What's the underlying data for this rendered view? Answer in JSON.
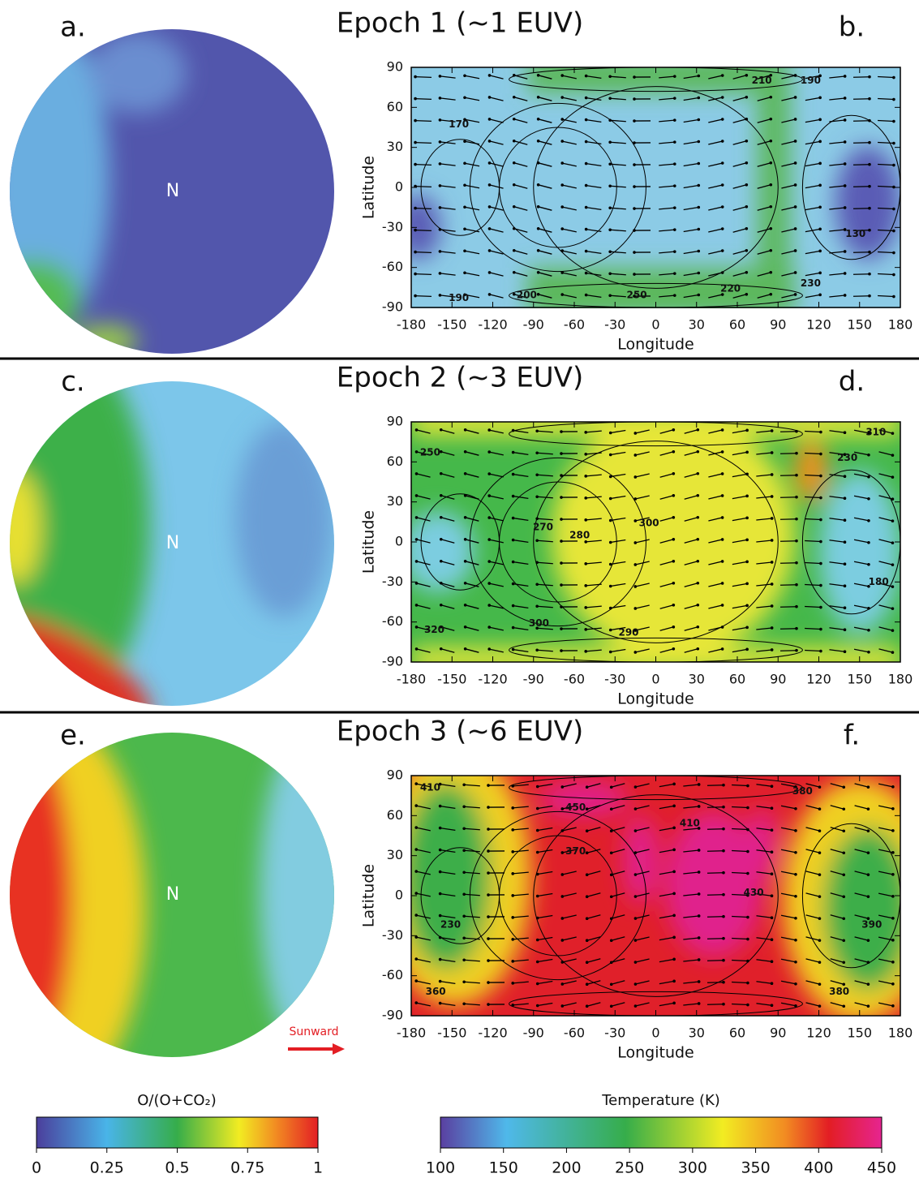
{
  "figure": {
    "rows": [
      {
        "title": "Epoch 1 (~1 EUV)",
        "disk_label": "a.",
        "map_label": "b.",
        "pole": "N",
        "contour_labels": [
          {
            "value": 170,
            "lon": -145,
            "lat": 47
          },
          {
            "value": 190,
            "lon": -145,
            "lat": -83
          },
          {
            "value": 200,
            "lon": -95,
            "lat": -81
          },
          {
            "value": 250,
            "lon": -14,
            "lat": -81
          },
          {
            "value": 220,
            "lon": 55,
            "lat": -76
          },
          {
            "value": 230,
            "lon": 114,
            "lat": -72
          },
          {
            "value": 130,
            "lon": 147,
            "lat": -35
          },
          {
            "value": 210,
            "lon": 78,
            "lat": 80
          },
          {
            "value": 190,
            "lon": 114,
            "lat": 80
          }
        ]
      },
      {
        "title": "Epoch 2 (~3 EUV)",
        "disk_label": "c.",
        "map_label": "d.",
        "pole": "N",
        "contour_labels": [
          {
            "value": 250,
            "lon": -166,
            "lat": 67
          },
          {
            "value": 320,
            "lon": -163,
            "lat": -66
          },
          {
            "value": 300,
            "lon": -86,
            "lat": -61
          },
          {
            "value": 270,
            "lon": -83,
            "lat": 11
          },
          {
            "value": 280,
            "lon": -56,
            "lat": 5
          },
          {
            "value": 300,
            "lon": -5,
            "lat": 14
          },
          {
            "value": 290,
            "lon": -20,
            "lat": -68
          },
          {
            "value": 310,
            "lon": 162,
            "lat": 82
          },
          {
            "value": 180,
            "lon": 164,
            "lat": -30
          },
          {
            "value": 230,
            "lon": 141,
            "lat": 63
          }
        ]
      },
      {
        "title": "Epoch 3 (~6 EUV)",
        "disk_label": "e.",
        "map_label": "f.",
        "pole": "N",
        "contour_labels": [
          {
            "value": 410,
            "lon": -166,
            "lat": 81
          },
          {
            "value": 450,
            "lon": -59,
            "lat": 66
          },
          {
            "value": 380,
            "lon": 108,
            "lat": 78
          },
          {
            "value": 230,
            "lon": -151,
            "lat": -22
          },
          {
            "value": 360,
            "lon": -162,
            "lat": -72
          },
          {
            "value": 390,
            "lon": 159,
            "lat": -22
          },
          {
            "value": 370,
            "lon": -59,
            "lat": 33
          },
          {
            "value": 410,
            "lon": 25,
            "lat": 54
          },
          {
            "value": 380,
            "lon": 135,
            "lat": -72
          },
          {
            "value": 430,
            "lon": 72,
            "lat": 2
          }
        ]
      }
    ],
    "map_axes": {
      "x_label": "Longitude",
      "y_label": "Latitude",
      "xlim": [
        -180,
        180
      ],
      "ylim": [
        -90,
        90
      ],
      "xticks": [
        -180,
        -150,
        -120,
        -90,
        -60,
        -30,
        0,
        30,
        60,
        90,
        120,
        150,
        180
      ],
      "yticks": [
        -90,
        -60,
        -30,
        0,
        30,
        60,
        90
      ]
    },
    "sunward": "Sunward",
    "colorbars": [
      {
        "title": "O/(O+CO₂)",
        "lim": [
          0,
          1
        ],
        "ticks": [
          0,
          0.25,
          0.5,
          0.75,
          1
        ]
      },
      {
        "title": "Temperature (K)",
        "lim": [
          100,
          450
        ],
        "ticks": [
          100,
          150,
          200,
          250,
          300,
          350,
          400,
          450
        ]
      }
    ]
  }
}
